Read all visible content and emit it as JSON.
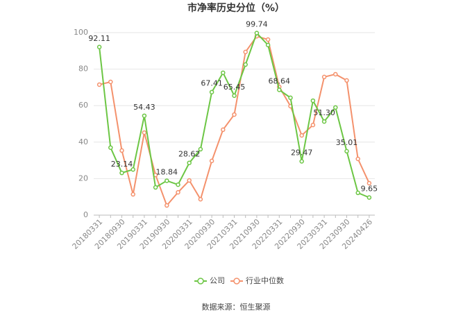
{
  "chart_data": {
    "type": "line",
    "title": "市净率历史分位（%）",
    "categories": [
      "20180331",
      null,
      "20180930",
      null,
      "20190331",
      null,
      "20190930",
      null,
      "20200331",
      null,
      "20200930",
      null,
      "20210331",
      null,
      "20210930",
      null,
      "20220331",
      null,
      "20220930",
      null,
      "20230331",
      null,
      "20230930",
      null,
      "20240426"
    ],
    "series": [
      {
        "name": "公司",
        "color": "#6cc644",
        "values": [
          92.11,
          37,
          23.14,
          25,
          54.43,
          15.2,
          18.84,
          16.7,
          28.62,
          36.1,
          67.41,
          78,
          65.45,
          82.5,
          99.74,
          93.2,
          68.64,
          64.3,
          29.47,
          62.7,
          51.3,
          59,
          35.01,
          12.2,
          9.65
        ],
        "value_labels": [
          "92.11",
          null,
          "23.14",
          null,
          "54.43",
          null,
          "18.84",
          null,
          "28.62",
          null,
          "67.41",
          null,
          "65.45",
          null,
          "99.74",
          null,
          "68.64",
          null,
          "29.47",
          null,
          "51.30",
          null,
          "35.01",
          null,
          "9.65"
        ]
      },
      {
        "name": "行业中位数",
        "color": "#f4916c",
        "values": [
          71.5,
          73,
          35.4,
          11.4,
          45.2,
          22,
          5.3,
          12.5,
          19,
          8.7,
          29.7,
          46.8,
          55.1,
          89.4,
          98,
          96.2,
          70.3,
          59.7,
          43.7,
          49.4,
          75.7,
          77.2,
          73.8,
          30.8,
          17.5
        ]
      }
    ],
    "ylim": [
      0,
      100
    ],
    "yticks": [
      0,
      20,
      40,
      60,
      80,
      100
    ],
    "grid": true,
    "source": "数据来源：恒生聚源"
  }
}
